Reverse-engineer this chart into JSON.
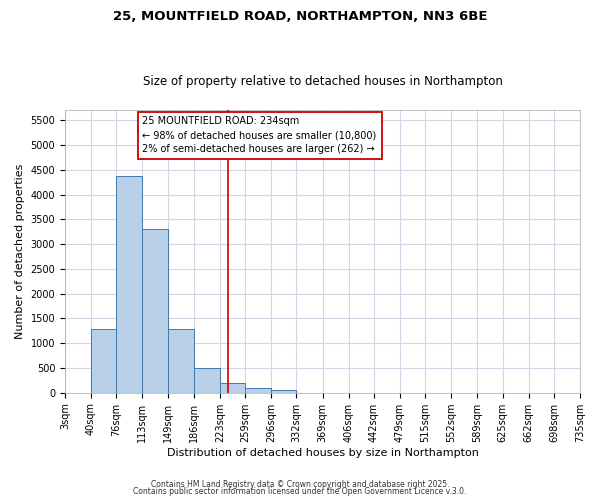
{
  "title1": "25, MOUNTFIELD ROAD, NORTHAMPTON, NN3 6BE",
  "title2": "Size of property relative to detached houses in Northampton",
  "xlabel": "Distribution of detached houses by size in Northampton",
  "ylabel": "Number of detached properties",
  "bin_edges": [
    3,
    40,
    76,
    113,
    149,
    186,
    223,
    259,
    296,
    332,
    369,
    406,
    442,
    479,
    515,
    552,
    589,
    625,
    662,
    698,
    735
  ],
  "bar_heights": [
    0,
    1280,
    4380,
    3300,
    1290,
    500,
    200,
    90,
    50,
    0,
    0,
    0,
    0,
    0,
    0,
    0,
    0,
    0,
    0,
    0
  ],
  "bar_color": "#b8d0e8",
  "bar_edge_color": "#4477aa",
  "vline_x": 234,
  "vline_color": "#cc0000",
  "ylim": [
    0,
    5700
  ],
  "yticks": [
    0,
    500,
    1000,
    1500,
    2000,
    2500,
    3000,
    3500,
    4000,
    4500,
    5000,
    5500
  ],
  "annotation_title": "25 MOUNTFIELD ROAD: 234sqm",
  "annotation_line1": "← 98% of detached houses are smaller (10,800)",
  "annotation_line2": "2% of semi-detached houses are larger (262) →",
  "annotation_color": "#cc0000",
  "footer1": "Contains HM Land Registry data © Crown copyright and database right 2025.",
  "footer2": "Contains public sector information licensed under the Open Government Licence v.3.0.",
  "background_color": "#ffffff",
  "plot_bg_color": "#ffffff",
  "grid_color": "#d0d8e8",
  "title_fontsize": 9.5,
  "subtitle_fontsize": 8.5,
  "axis_label_fontsize": 8,
  "tick_fontsize": 7,
  "annot_fontsize": 7,
  "footer_fontsize": 5.5
}
